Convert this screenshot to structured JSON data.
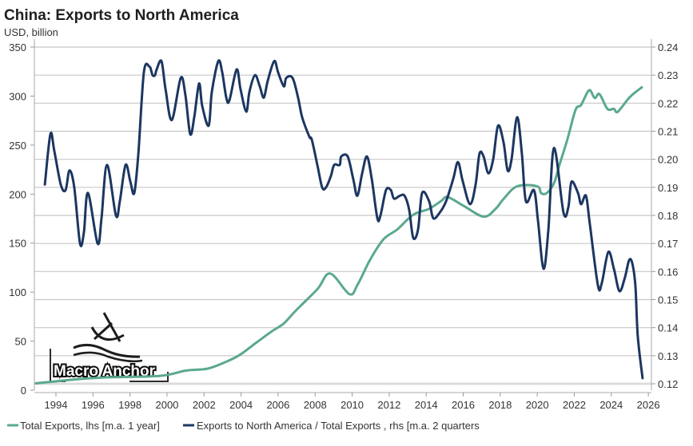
{
  "chart_data": {
    "type": "line",
    "title": "China: Exports to North America",
    "subtitle": "USD, billion",
    "xlabel": "",
    "ylabel_left": "USD, billion",
    "xlim": [
      1992.9,
      2026.1
    ],
    "ylim_left": [
      0,
      350
    ],
    "ylim_right": [
      0.12,
      0.24
    ],
    "x_ticks": [
      "1994",
      "1996",
      "1998",
      "2000",
      "2002",
      "2004",
      "2006",
      "2008",
      "2010",
      "2012",
      "2014",
      "2016",
      "2018",
      "2020",
      "2022",
      "2024",
      "2026"
    ],
    "y_ticks_left": [
      "0",
      "50",
      "100",
      "150",
      "200",
      "250",
      "300",
      "350"
    ],
    "y_ticks_right": [
      "0.12",
      "0.13",
      "0.14",
      "0.15",
      "0.16",
      "0.17",
      "0.18",
      "0.19",
      "0.20",
      "0.21",
      "0.22",
      "0.23",
      "0.24"
    ],
    "grid": true,
    "legend_position": "bottom",
    "series": [
      {
        "name": "Total Exports, lhs [m.a. 1 year]",
        "axis": "left",
        "color": "#5aa88f",
        "x": [
          1992.92,
          1995.3,
          1996.72,
          1999.61,
          2001.04,
          2002.2,
          2003.2,
          2003.93,
          2004.79,
          2005.66,
          2006.3,
          2006.95,
          2008.12,
          2008.81,
          2009.85,
          2010.28,
          2010.97,
          2011.7,
          2012.44,
          2013.3,
          2014.16,
          2014.81,
          2015.16,
          2016.02,
          2017.1,
          2017.75,
          2018.18,
          2018.91,
          2019.99,
          2020.21,
          2020.51,
          2020.9,
          2021.2,
          2021.63,
          2022.07,
          2022.37,
          2022.8,
          2023.1,
          2023.36,
          2023.79,
          2024.14,
          2024.35,
          2025.0,
          2025.65
        ],
        "values": [
          7,
          11.4,
          13,
          14.6,
          20,
          22,
          29,
          36,
          48,
          60,
          68,
          81,
          103,
          119,
          98,
          107,
          133,
          154,
          164,
          179,
          185,
          193,
          197,
          188,
          177,
          185,
          195,
          208,
          208,
          201,
          201,
          211,
          230,
          256,
          286,
          291,
          306,
          298,
          302,
          287,
          287,
          284,
          299,
          309
        ]
      },
      {
        "name": "Exports to North America / Total Exports , rhs [m.a. 2 quarters",
        "axis": "right",
        "color": "#1c3660",
        "x": [
          1993.4,
          1993.7,
          1993.91,
          1994.26,
          1994.52,
          1994.73,
          1994.99,
          1995.3,
          1995.51,
          1995.73,
          1996.25,
          1996.46,
          1996.76,
          1997.24,
          1997.45,
          1997.76,
          1998.02,
          1998.23,
          1998.45,
          1998.75,
          1999.05,
          1999.22,
          1999.35,
          1999.44,
          1999.7,
          1999.92,
          2000.26,
          2000.74,
          2000.99,
          2001.25,
          2001.47,
          2001.73,
          2001.9,
          2002.25,
          2002.42,
          2002.77,
          2002.98,
          2003.2,
          2003.37,
          2003.76,
          2003.97,
          2004.28,
          2004.45,
          2004.75,
          2005.01,
          2005.23,
          2005.44,
          2005.79,
          2006.0,
          2006.31,
          2006.44,
          2006.78,
          2007.08,
          2007.3,
          2007.69,
          2007.82,
          2008.12,
          2008.38,
          2008.59,
          2008.85,
          2009.03,
          2009.33,
          2009.41,
          2009.76,
          2010.06,
          2010.28,
          2010.54,
          2010.8,
          2011.06,
          2011.36,
          2011.53,
          2011.83,
          2012.09,
          2012.26,
          2012.57,
          2012.83,
          2013.08,
          2013.3,
          2013.56,
          2013.78,
          2014.16,
          2014.38,
          2014.73,
          2015.07,
          2015.46,
          2015.72,
          2015.98,
          2016.37,
          2016.67,
          2016.88,
          2017.1,
          2017.36,
          2017.62,
          2017.88,
          2018.18,
          2018.4,
          2018.61,
          2018.91,
          2019.17,
          2019.39,
          2019.82,
          2020.04,
          2020.34,
          2020.6,
          2020.9,
          2021.42,
          2021.68,
          2021.85,
          2022.2,
          2022.37,
          2022.63,
          2022.84,
          2023.28,
          2023.49,
          2023.84,
          2024.14,
          2024.44,
          2024.74,
          2024.96,
          2025.13,
          2025.3,
          2025.43,
          2025.69
        ],
        "values": [
          0.191,
          0.209,
          0.203,
          0.191,
          0.189,
          0.196,
          0.19,
          0.17,
          0.174,
          0.188,
          0.17,
          0.179,
          0.198,
          0.18,
          0.185,
          0.198,
          0.192,
          0.188,
          0.202,
          0.231,
          0.233,
          0.23,
          0.23,
          0.232,
          0.235,
          0.225,
          0.214,
          0.229,
          0.223,
          0.209,
          0.215,
          0.227,
          0.219,
          0.212,
          0.224,
          0.235,
          0.231,
          0.222,
          0.221,
          0.232,
          0.225,
          0.217,
          0.224,
          0.23,
          0.226,
          0.222,
          0.228,
          0.235,
          0.231,
          0.226,
          0.229,
          0.229,
          0.222,
          0.215,
          0.208,
          0.207,
          0.198,
          0.19,
          0.19,
          0.194,
          0.198,
          0.198,
          0.201,
          0.201,
          0.193,
          0.187,
          0.195,
          0.201,
          0.193,
          0.179,
          0.18,
          0.189,
          0.189,
          0.186,
          0.187,
          0.187,
          0.182,
          0.172,
          0.175,
          0.188,
          0.185,
          0.179,
          0.181,
          0.185,
          0.193,
          0.199,
          0.192,
          0.184,
          0.191,
          0.202,
          0.201,
          0.195,
          0.2,
          0.212,
          0.206,
          0.196,
          0.2,
          0.215,
          0.202,
          0.185,
          0.189,
          0.178,
          0.161,
          0.175,
          0.204,
          0.181,
          0.183,
          0.192,
          0.188,
          0.184,
          0.187,
          0.177,
          0.155,
          0.156,
          0.167,
          0.161,
          0.153,
          0.158,
          0.164,
          0.163,
          0.155,
          0.137,
          0.122
        ]
      }
    ]
  },
  "legend": {
    "item1": "Total Exports, lhs [m.a. 1 year]",
    "item2": "Exports to North America / Total Exports , rhs [m.a. 2 quarters"
  },
  "logo_text": "Macro Anchor"
}
